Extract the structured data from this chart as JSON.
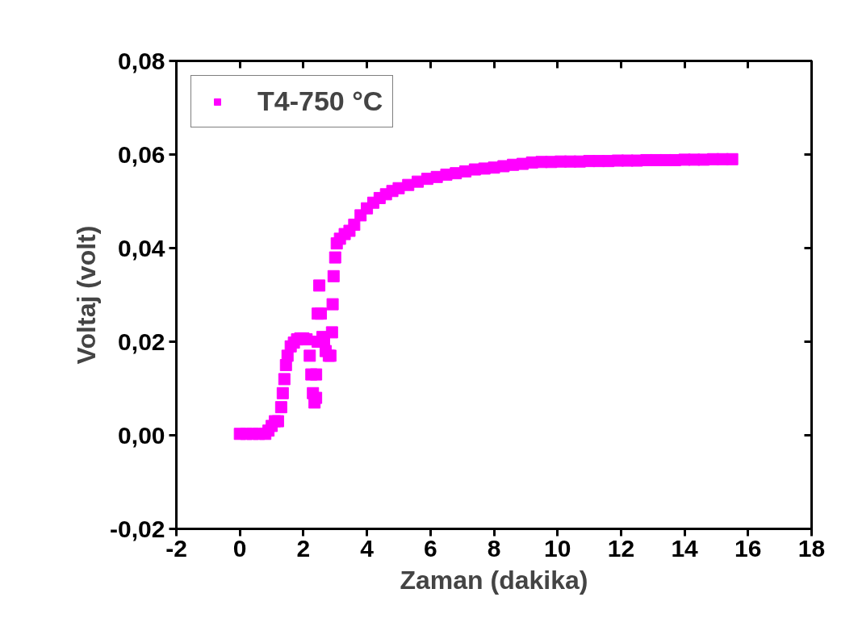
{
  "chart_data": {
    "type": "scatter",
    "xlabel": "Zaman (dakika)",
    "ylabel": "Voltaj (volt)",
    "xlim": [
      -2,
      18
    ],
    "xticks": [
      -2,
      0,
      2,
      4,
      6,
      8,
      10,
      12,
      14,
      16,
      18
    ],
    "ylim": [
      -0.02,
      0.08
    ],
    "yticks": [
      {
        "value": -0.02,
        "label": "-0,02"
      },
      {
        "value": 0,
        "label": "0,00"
      },
      {
        "value": 0.02,
        "label": "0,02"
      },
      {
        "value": 0.04,
        "label": "0,04"
      },
      {
        "value": 0.06,
        "label": "0,06"
      },
      {
        "value": 0.08,
        "label": "0,08"
      }
    ],
    "marker": "square",
    "legend": "top left",
    "grid": false,
    "series": [
      {
        "name": "T4-750 °C",
        "color": "#ff00ff",
        "x": [
          0,
          0.2,
          0.4,
          0.6,
          0.8,
          0.9,
          1.0,
          1.1,
          1.2,
          1.3,
          1.35,
          1.4,
          1.45,
          1.5,
          1.6,
          1.7,
          1.8,
          1.9,
          2.0,
          2.1,
          2.2,
          2.25,
          2.3,
          2.35,
          2.4,
          2.4,
          2.45,
          2.45,
          2.5,
          2.55,
          2.6,
          2.65,
          2.7,
          2.8,
          2.85,
          2.9,
          2.92,
          2.95,
          3.0,
          3.05,
          3.15,
          3.3,
          3.45,
          3.6,
          3.8,
          4.0,
          4.2,
          4.4,
          4.6,
          4.8,
          5.0,
          5.3,
          5.6,
          5.9,
          6.2,
          6.5,
          6.8,
          7.1,
          7.4,
          7.7,
          8.0,
          8.3,
          8.6,
          8.9,
          9.2,
          9.5,
          9.8,
          10.1,
          10.4,
          10.7,
          11.0,
          11.3,
          11.6,
          11.9,
          12.2,
          12.5,
          12.8,
          13.1,
          13.4,
          13.7,
          14.0,
          14.3,
          14.6,
          14.9,
          15.2,
          15.5
        ],
        "values": [
          0.0003,
          0.0003,
          0.0003,
          0.0003,
          0.0003,
          0.001,
          0.002,
          0.003,
          0.003,
          0.006,
          0.009,
          0.012,
          0.015,
          0.017,
          0.019,
          0.0198,
          0.0205,
          0.0207,
          0.0207,
          0.0205,
          0.017,
          0.013,
          0.009,
          0.007,
          0.008,
          0.013,
          0.02,
          0.026,
          0.032,
          0.026,
          0.021,
          0.02,
          0.018,
          0.017,
          0.017,
          0.022,
          0.028,
          0.034,
          0.038,
          0.041,
          0.042,
          0.043,
          0.0437,
          0.045,
          0.047,
          0.0485,
          0.0497,
          0.0507,
          0.0515,
          0.0522,
          0.0528,
          0.0535,
          0.0542,
          0.0548,
          0.0552,
          0.0557,
          0.056,
          0.0564,
          0.0568,
          0.057,
          0.0572,
          0.0575,
          0.0578,
          0.058,
          0.0583,
          0.0584,
          0.0584,
          0.0585,
          0.0585,
          0.0585,
          0.0586,
          0.0586,
          0.0586,
          0.0587,
          0.0587,
          0.0587,
          0.0588,
          0.0588,
          0.0588,
          0.0588,
          0.0589,
          0.0589,
          0.0589,
          0.059,
          0.059,
          0.059
        ]
      }
    ]
  }
}
